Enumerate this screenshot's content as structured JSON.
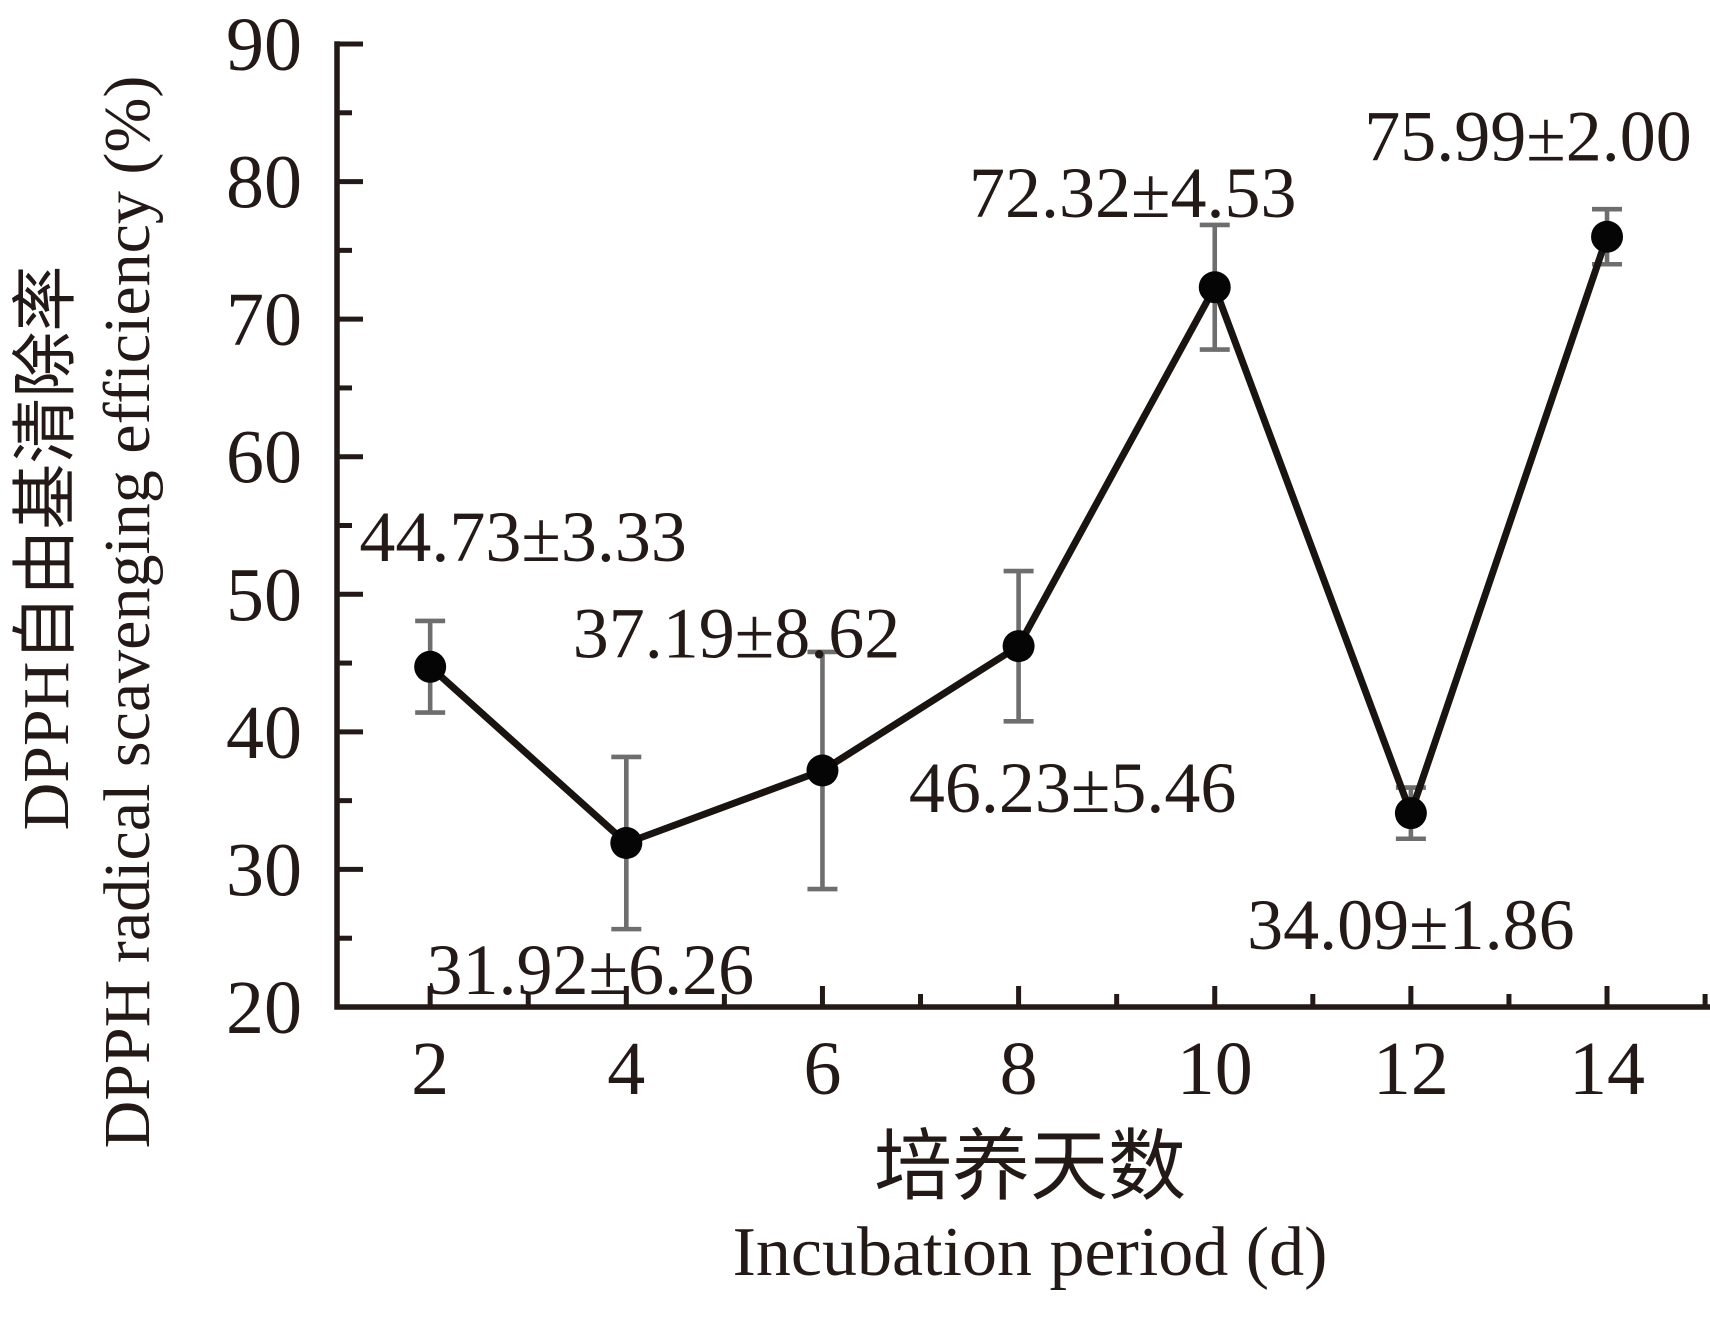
{
  "figure": {
    "background": "#ffffff"
  },
  "colors": {
    "ink": "#231916",
    "marker": "#050505",
    "series_line": "#1a1411",
    "error_bar": "#6e6e6e"
  },
  "chart_data": {
    "type": "line",
    "title": "",
    "x": [
      2,
      4,
      6,
      8,
      10,
      12,
      14
    ],
    "values": [
      44.73,
      31.92,
      37.19,
      46.23,
      72.32,
      34.09,
      75.99
    ],
    "errors": [
      3.33,
      6.26,
      8.62,
      5.46,
      4.53,
      1.86,
      2.0
    ],
    "point_labels": [
      "44.73±3.33",
      "31.92±6.26",
      "37.19±8.62",
      "46.23±5.46",
      "72.32±4.53",
      "34.09±1.86",
      "75.99±2.00"
    ],
    "x_ticks": [
      2,
      4,
      6,
      8,
      10,
      12,
      14
    ],
    "x_minor_ticks": [
      3,
      5,
      7,
      9,
      11,
      13,
      15
    ],
    "y_ticks": [
      20,
      30,
      40,
      50,
      60,
      70,
      80,
      90
    ],
    "y_minor_ticks": [
      25,
      35,
      45,
      55,
      65,
      75,
      85
    ],
    "xlim": [
      1.05,
      15.05
    ],
    "ylim": [
      20,
      90
    ],
    "grid": false,
    "legend": null,
    "marker": "filled-circle",
    "error_bars": true,
    "x_title_zh": "培养天数",
    "x_title_en": "Incubation period (d)",
    "y_title_zh": "DPPH自由基清除率",
    "y_title_en": "DPPH radical scavenging efficiency (%)"
  }
}
